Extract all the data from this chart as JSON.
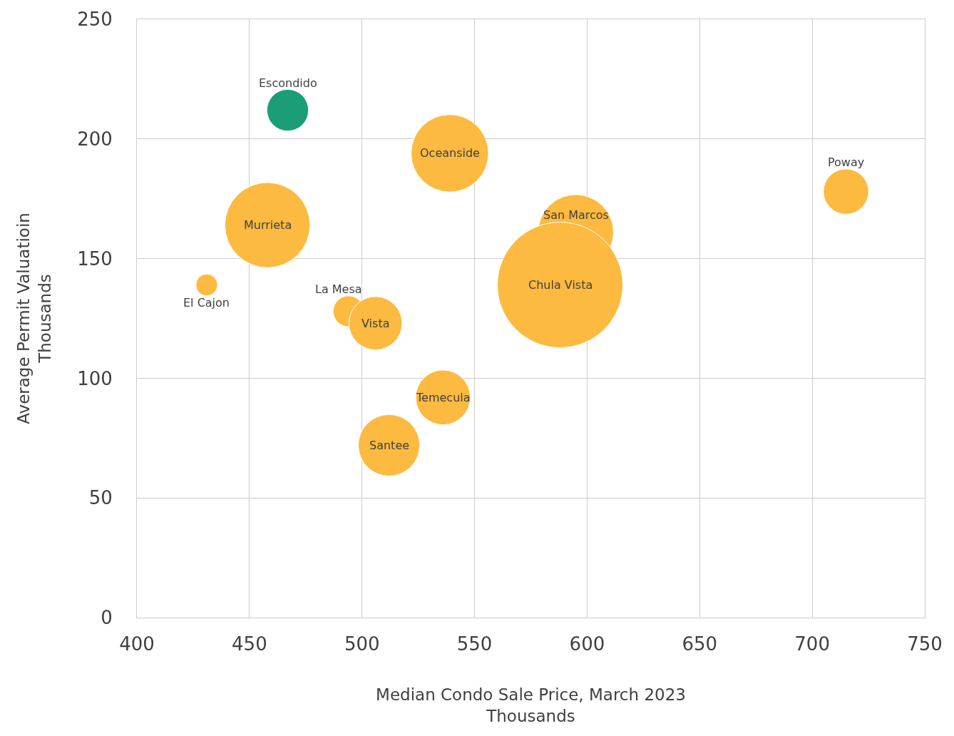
{
  "chart_data": {
    "type": "bubble",
    "xlabel": "Median Condo Sale Price, March 2023\nThousands",
    "ylabel": "Average Permit Valuatioin\nThousands",
    "xlim": [
      400,
      750
    ],
    "xticks": [
      400,
      450,
      500,
      550,
      600,
      650,
      700,
      750
    ],
    "ylim": [
      0,
      250
    ],
    "yticks": [
      0,
      50,
      100,
      150,
      200,
      250
    ],
    "grid": true,
    "legend": false,
    "series": [
      {
        "name": "El Cajon",
        "color": "#fcba40",
        "x": [
          431
        ],
        "values": [
          139
        ],
        "sizes": [
          0.03
        ]
      },
      {
        "name": "Escondido",
        "color": "#1b9d78",
        "x": [
          467
        ],
        "values": [
          212
        ],
        "sizes": [
          0.11
        ]
      },
      {
        "name": "Murrieta",
        "color": "#fcba40",
        "x": [
          458
        ],
        "values": [
          164
        ],
        "sizes": [
          0.46
        ]
      },
      {
        "name": "La Mesa",
        "color": "#fcba40",
        "x": [
          494
        ],
        "values": [
          128
        ],
        "sizes": [
          0.06
        ]
      },
      {
        "name": "Vista",
        "color": "#fcba40",
        "x": [
          506
        ],
        "values": [
          123
        ],
        "sizes": [
          0.18
        ]
      },
      {
        "name": "Santee",
        "color": "#fcba40",
        "x": [
          512
        ],
        "values": [
          72
        ],
        "sizes": [
          0.24
        ]
      },
      {
        "name": "Temecula",
        "color": "#fcba40",
        "x": [
          536
        ],
        "values": [
          92
        ],
        "sizes": [
          0.19
        ]
      },
      {
        "name": "Oceanside",
        "color": "#fcba40",
        "x": [
          539
        ],
        "values": [
          194
        ],
        "sizes": [
          0.38
        ]
      },
      {
        "name": "San Marcos",
        "color": "#fcba40",
        "x": [
          595
        ],
        "values": [
          161
        ],
        "sizes": [
          0.36
        ]
      },
      {
        "name": "Chula Vista",
        "color": "#fcba40",
        "x": [
          588
        ],
        "values": [
          139
        ],
        "sizes": [
          1
        ]
      },
      {
        "name": "Poway",
        "color": "#fcba40",
        "x": [
          715
        ],
        "values": [
          178
        ],
        "sizes": [
          0.13
        ]
      }
    ]
  }
}
